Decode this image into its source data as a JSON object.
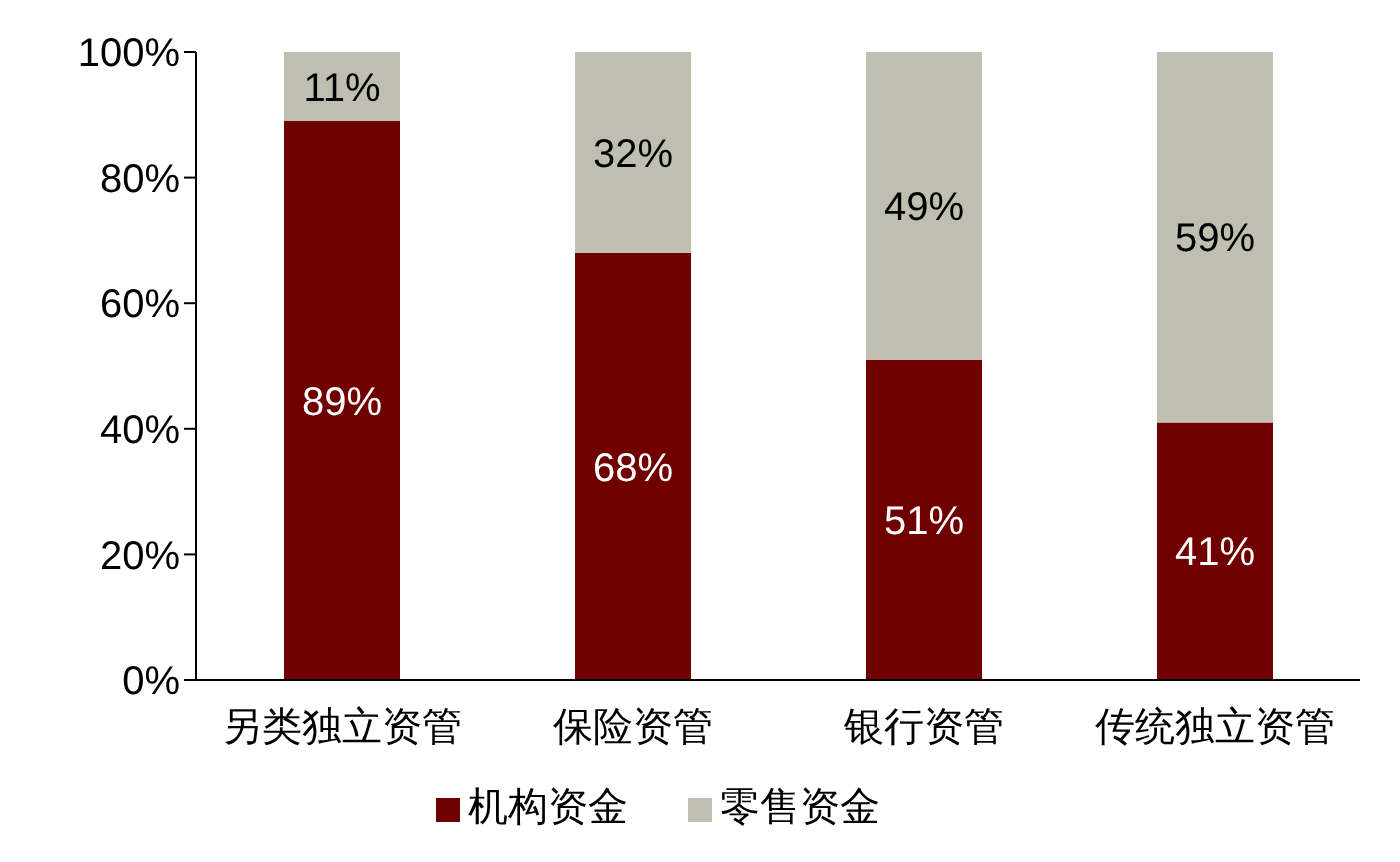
{
  "chart_data": {
    "type": "bar",
    "stacked": true,
    "categories": [
      "另类独立资管",
      "保险资管",
      "银行资管",
      "传统独立资管"
    ],
    "series": [
      {
        "name": "机构资金",
        "color": "#700000",
        "values": [
          89,
          68,
          51,
          41
        ],
        "value_labels": [
          "89%",
          "68%",
          "51%",
          "41%"
        ]
      },
      {
        "name": "零售资金",
        "color": "#bfbfb1",
        "values": [
          11,
          32,
          49,
          59
        ],
        "value_labels": [
          "11%",
          "32%",
          "49%",
          "59%"
        ]
      }
    ],
    "ylim": [
      0,
      100
    ],
    "yticks": [
      {
        "value": 0,
        "label": "0%"
      },
      {
        "value": 20,
        "label": "20%"
      },
      {
        "value": 40,
        "label": "40%"
      },
      {
        "value": 60,
        "label": "60%"
      },
      {
        "value": 80,
        "label": "80%"
      },
      {
        "value": 100,
        "label": "100%"
      }
    ],
    "grid": false,
    "legend": "bottom"
  }
}
